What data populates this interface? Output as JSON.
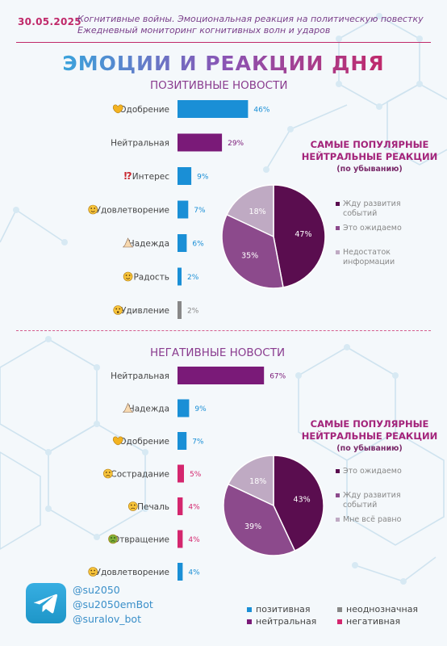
{
  "header": {
    "date": "30.05.2025",
    "subtitle_line1": "Когнитивные войны. Эмоциональная реакция на политическую повестку",
    "subtitle_line2": "Ежедневный мониторинг когнитивных волн и ударов"
  },
  "title": "ЭМОЦИИ И РЕАКЦИИ ДНЯ",
  "colors": {
    "positive": "#1a8fd6",
    "neutral": "#7a1a78",
    "ambiguous": "#888888",
    "negative": "#d4266e",
    "pie_dark": "#5a0d4f",
    "pie_mid": "#8c4a8c",
    "pie_light": "#bfaac3"
  },
  "chart_data": [
    {
      "type": "bar",
      "title": "ПОЗИТИВНЫЕ НОВОСТИ",
      "categories": [
        "Одобрение",
        "Нейтральная",
        "Интерес",
        "Удовлетворение",
        "Надежда",
        "Радость",
        "Удивление"
      ],
      "icons": [
        "heart-hands-icon",
        "",
        "question-exclamation-icon",
        "relieved-face-icon",
        "praying-hands-icon",
        "smiling-tear-face-icon",
        "astonished-face-icon"
      ],
      "values": [
        46,
        29,
        9,
        7,
        6,
        2,
        2
      ],
      "labels": [
        "46%",
        "29%",
        "9%",
        "7%",
        "6%",
        "2%",
        "2%"
      ],
      "kinds": [
        "positive",
        "neutral",
        "positive",
        "positive",
        "positive",
        "positive",
        "ambiguous"
      ]
    },
    {
      "type": "pie",
      "title": "САМЫЕ ПОПУЛЯРНЫЕ НЕЙТРАЛЬНЫЕ РЕАКЦИИ",
      "subtitle": "(по убыванию)",
      "categories": [
        "Жду развития событий",
        "Это ожидаемо",
        "Недостаток информации"
      ],
      "values": [
        47,
        35,
        18
      ],
      "labels": [
        "47%",
        "35%",
        "18%"
      ]
    },
    {
      "type": "bar",
      "title": "НЕГАТИВНЫЕ НОВОСТИ",
      "categories": [
        "Нейтральная",
        "Надежда",
        "Одобрение",
        "Сострадание",
        "Печаль",
        "Отвращение",
        "Удовлетворение"
      ],
      "icons": [
        "",
        "praying-hands-icon",
        "heart-hands-icon",
        "pleading-face-icon",
        "sad-face-icon",
        "nauseated-face-icon",
        "relieved-face-icon"
      ],
      "values": [
        67,
        9,
        7,
        5,
        4,
        4,
        4
      ],
      "labels": [
        "67%",
        "9%",
        "7%",
        "5%",
        "4%",
        "4%",
        "4%"
      ],
      "kinds": [
        "neutral",
        "positive",
        "positive",
        "negative",
        "negative",
        "negative",
        "positive"
      ]
    },
    {
      "type": "pie",
      "title": "САМЫЕ ПОПУЛЯРНЫЕ НЕЙТРАЛЬНЫЕ РЕАКЦИИ",
      "subtitle": "(по убыванию)",
      "categories": [
        "Это ожидаемо",
        "Жду развития событий",
        "Мне всё равно"
      ],
      "values": [
        43,
        39,
        18
      ],
      "labels": [
        "43%",
        "39%",
        "18%"
      ]
    }
  ],
  "footer": {
    "handles": [
      "@su2050",
      "@su2050emBot",
      "@suralov_bot"
    ],
    "legend": [
      {
        "label": "позитивная",
        "kind": "positive"
      },
      {
        "label": "неоднозначная",
        "kind": "ambiguous"
      },
      {
        "label": "нейтральная",
        "kind": "neutral"
      },
      {
        "label": "негативная",
        "kind": "negative"
      }
    ]
  }
}
